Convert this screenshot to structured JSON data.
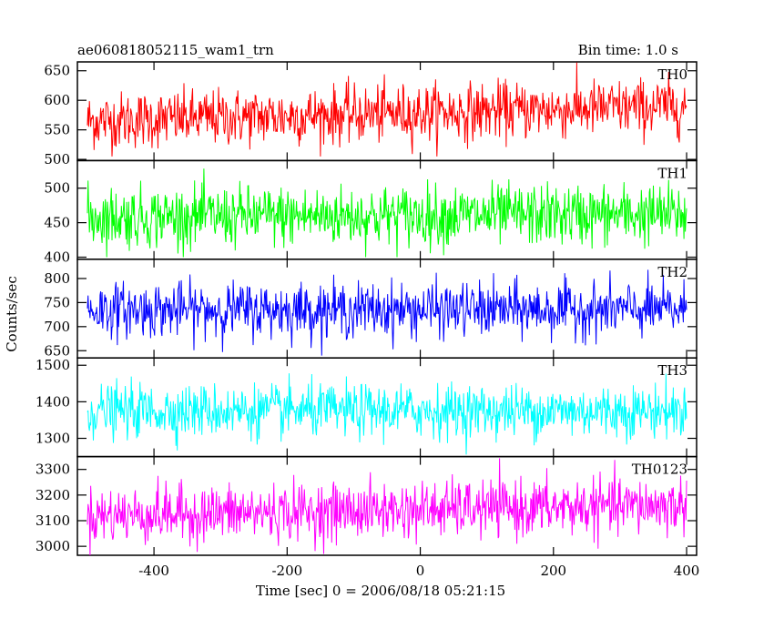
{
  "header": {
    "left_title": "ae060818052115_wam1_trn",
    "right_title": "Bin time: 1.0 s"
  },
  "chart_data": {
    "type": "line",
    "xlabel": "Time [sec] 0 = 2006/08/18 05:21:15",
    "ylabel": "Counts/sec",
    "xlim": [
      -515,
      415
    ],
    "x_ticks": [
      -400,
      -200,
      0,
      200,
      400
    ],
    "bin_time_s": 1.0,
    "x_range_data": [
      -500,
      400
    ],
    "panels": [
      {
        "name": "TH0",
        "color": "#ff0000",
        "ylim": [
          498,
          665
        ],
        "y_ticks": [
          500,
          550,
          600,
          650
        ],
        "mean_start": 565,
        "mean_end": 590,
        "spread": 24,
        "min": 505,
        "max": 665
      },
      {
        "name": "TH1",
        "color": "#00ff00",
        "ylim": [
          397,
          540
        ],
        "y_ticks": [
          400,
          450,
          500
        ],
        "mean_start": 458,
        "mean_end": 462,
        "spread": 22,
        "min": 400,
        "max": 540
      },
      {
        "name": "TH2",
        "color": "#0000ff",
        "ylim": [
          635,
          840
        ],
        "y_ticks": [
          650,
          700,
          750,
          800
        ],
        "mean_start": 735,
        "mean_end": 735,
        "spread": 28,
        "min": 640,
        "max": 835
      },
      {
        "name": "TH3",
        "color": "#00ffff",
        "ylim": [
          1250,
          1520
        ],
        "y_ticks": [
          1300,
          1400,
          1500
        ],
        "mean_start": 1375,
        "mean_end": 1375,
        "spread": 36,
        "min": 1255,
        "max": 1520
      },
      {
        "name": "TH0123",
        "color": "#ff00ff",
        "ylim": [
          2965,
          3350
        ],
        "y_ticks": [
          3000,
          3100,
          3200,
          3300
        ],
        "mean_start": 3120,
        "mean_end": 3160,
        "spread": 55,
        "min": 2965,
        "max": 3350
      }
    ]
  }
}
